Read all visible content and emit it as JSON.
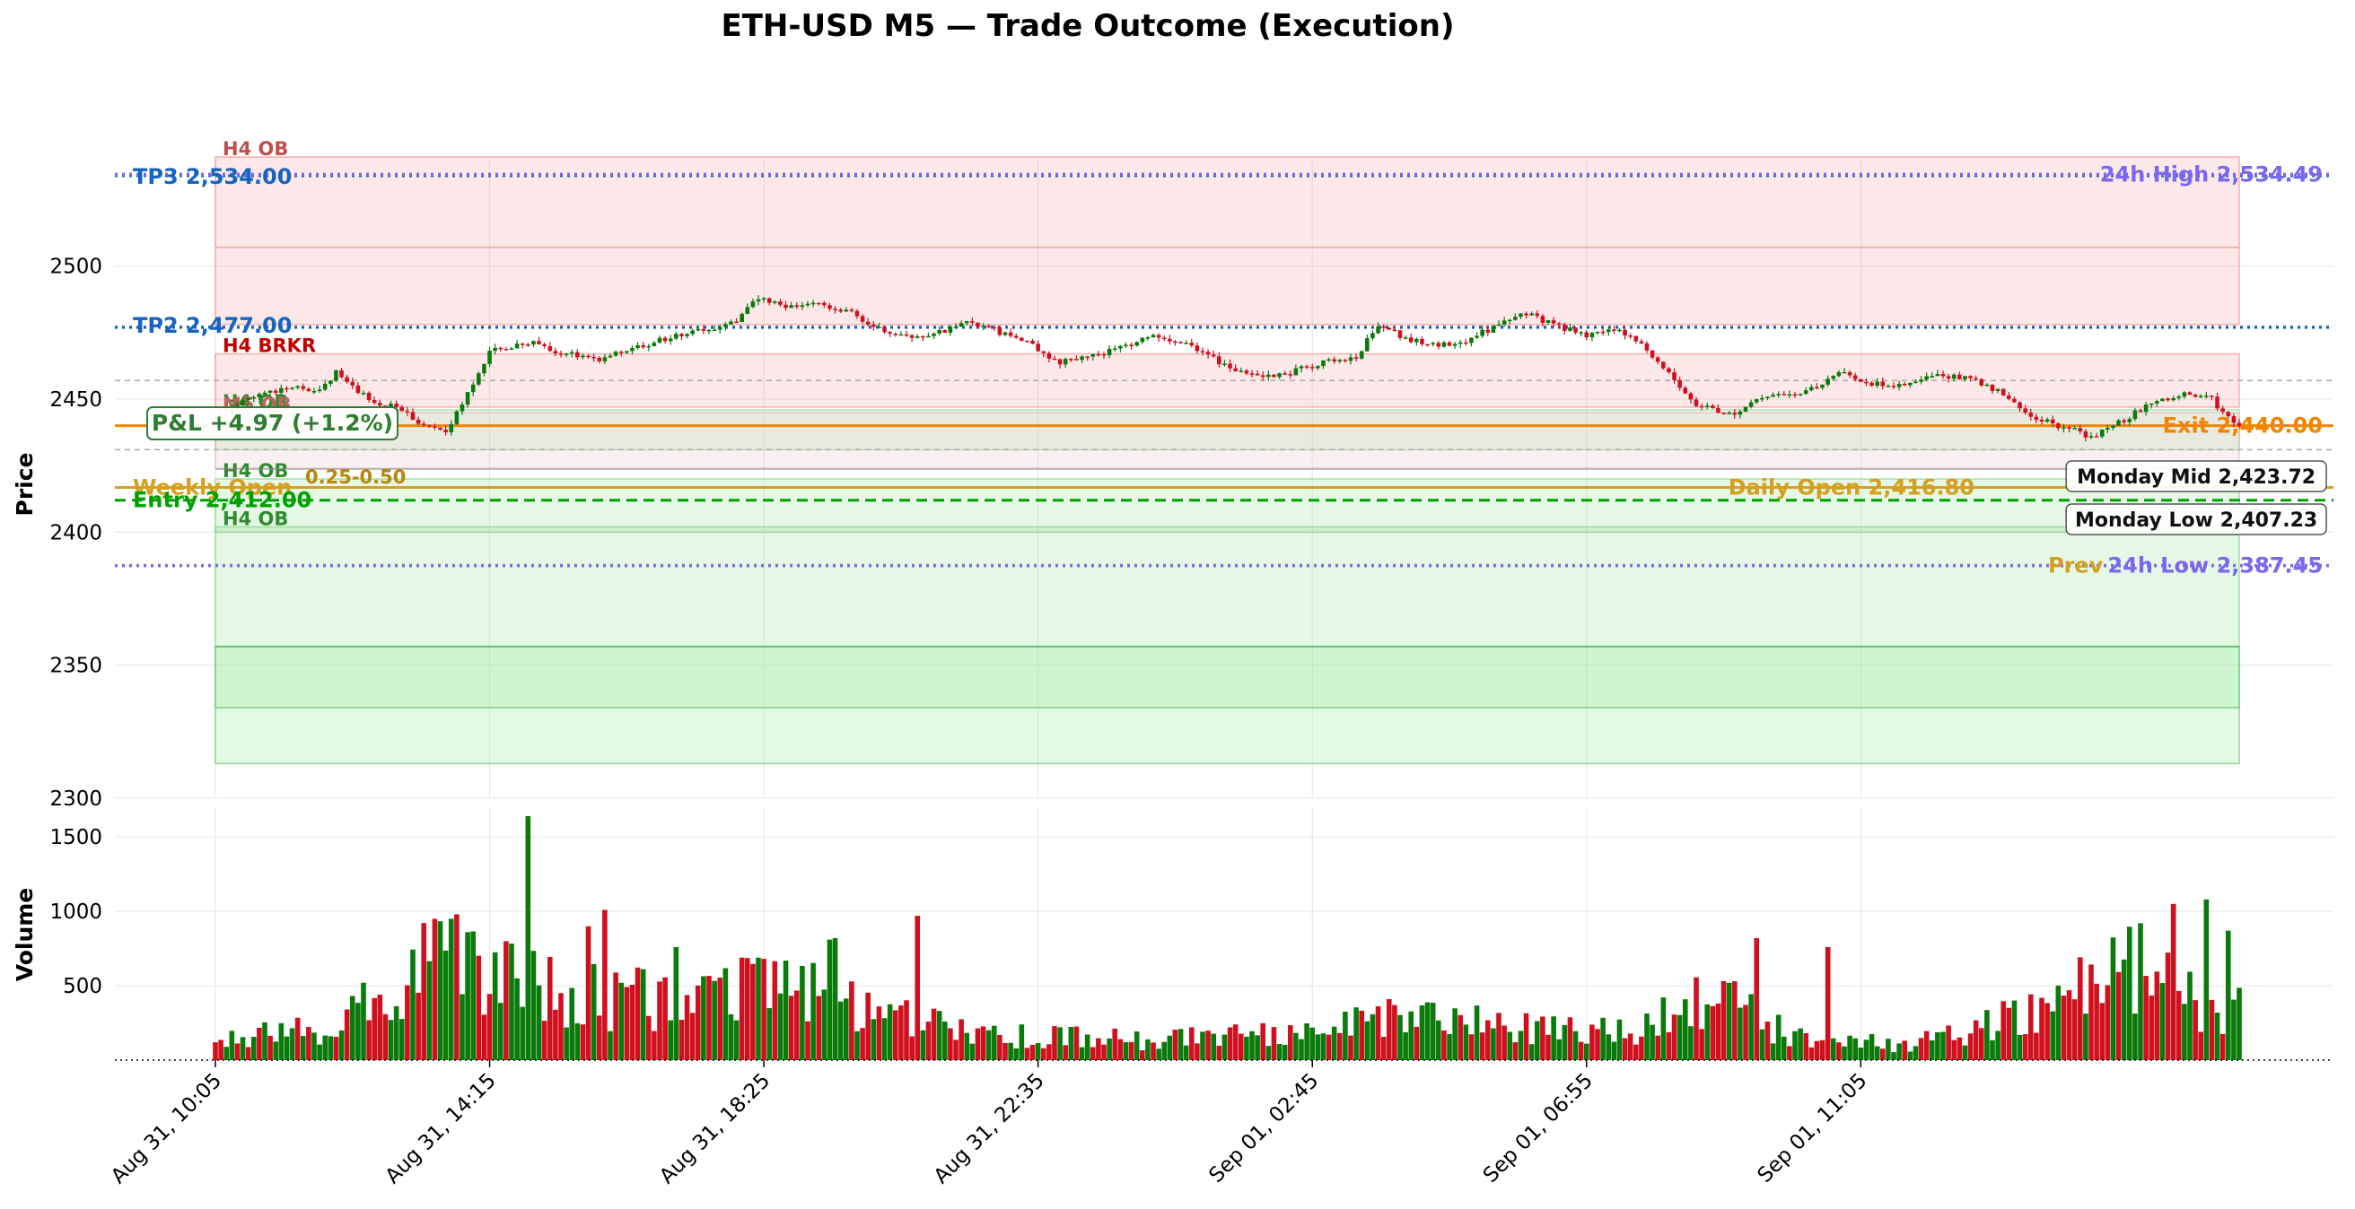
{
  "chart_data": {
    "type": "candlestick",
    "title": "ETH-USD M5 — Trade Outcome (Execution)",
    "ylabel": "Price",
    "volume_label": "Volume",
    "price_ylim": [
      2300,
      2540
    ],
    "price_yticks": [
      2300,
      2350,
      2400,
      2450,
      2500
    ],
    "volume_ylim": [
      0,
      1700
    ],
    "volume_yticks": [
      500,
      1000,
      1500
    ],
    "x_ticks": [
      "Aug 31, 10:05",
      "Aug 31, 14:15",
      "Aug 31, 18:25",
      "Aug 31, 22:35",
      "Sep 01, 02:45",
      "Sep 01, 06:55",
      "Sep 01, 11:05"
    ],
    "grid": true,
    "price_path": [
      {
        "t": 0,
        "p": 2443
      },
      {
        "t": 6,
        "p": 2450
      },
      {
        "t": 14,
        "p": 2455
      },
      {
        "t": 18,
        "p": 2452
      },
      {
        "t": 22,
        "p": 2460
      },
      {
        "t": 28,
        "p": 2450
      },
      {
        "t": 34,
        "p": 2446
      },
      {
        "t": 38,
        "p": 2440
      },
      {
        "t": 42,
        "p": 2438
      },
      {
        "t": 46,
        "p": 2452
      },
      {
        "t": 50,
        "p": 2468
      },
      {
        "t": 58,
        "p": 2472
      },
      {
        "t": 62,
        "p": 2468
      },
      {
        "t": 70,
        "p": 2465
      },
      {
        "t": 78,
        "p": 2470
      },
      {
        "t": 84,
        "p": 2474
      },
      {
        "t": 90,
        "p": 2476
      },
      {
        "t": 95,
        "p": 2480
      },
      {
        "t": 99,
        "p": 2488
      },
      {
        "t": 104,
        "p": 2484
      },
      {
        "t": 110,
        "p": 2486
      },
      {
        "t": 116,
        "p": 2482
      },
      {
        "t": 122,
        "p": 2475
      },
      {
        "t": 130,
        "p": 2473
      },
      {
        "t": 136,
        "p": 2479
      },
      {
        "t": 142,
        "p": 2476
      },
      {
        "t": 148,
        "p": 2471
      },
      {
        "t": 154,
        "p": 2464
      },
      {
        "t": 160,
        "p": 2466
      },
      {
        "t": 166,
        "p": 2470
      },
      {
        "t": 172,
        "p": 2474
      },
      {
        "t": 178,
        "p": 2470
      },
      {
        "t": 184,
        "p": 2463
      },
      {
        "t": 190,
        "p": 2458
      },
      {
        "t": 196,
        "p": 2460
      },
      {
        "t": 202,
        "p": 2464
      },
      {
        "t": 208,
        "p": 2466
      },
      {
        "t": 212,
        "p": 2478
      },
      {
        "t": 218,
        "p": 2472
      },
      {
        "t": 226,
        "p": 2470
      },
      {
        "t": 232,
        "p": 2476
      },
      {
        "t": 238,
        "p": 2483
      },
      {
        "t": 244,
        "p": 2478
      },
      {
        "t": 250,
        "p": 2474
      },
      {
        "t": 256,
        "p": 2476
      },
      {
        "t": 260,
        "p": 2470
      },
      {
        "t": 265,
        "p": 2460
      },
      {
        "t": 270,
        "p": 2448
      },
      {
        "t": 276,
        "p": 2444
      },
      {
        "t": 282,
        "p": 2450
      },
      {
        "t": 290,
        "p": 2453
      },
      {
        "t": 296,
        "p": 2460
      },
      {
        "t": 302,
        "p": 2456
      },
      {
        "t": 308,
        "p": 2455
      },
      {
        "t": 314,
        "p": 2459
      },
      {
        "t": 320,
        "p": 2458
      },
      {
        "t": 326,
        "p": 2452
      },
      {
        "t": 330,
        "p": 2444
      },
      {
        "t": 336,
        "p": 2440
      },
      {
        "t": 342,
        "p": 2436
      },
      {
        "t": 348,
        "p": 2442
      },
      {
        "t": 354,
        "p": 2450
      },
      {
        "t": 360,
        "p": 2452
      },
      {
        "t": 364,
        "p": 2450
      },
      {
        "t": 368,
        "p": 2440
      }
    ],
    "volume_profile": [
      {
        "t": 0,
        "v": 120
      },
      {
        "t": 20,
        "v": 220
      },
      {
        "t": 40,
        "v": 650
      },
      {
        "t": 55,
        "v": 520
      },
      {
        "t": 70,
        "v": 420
      },
      {
        "t": 90,
        "v": 380
      },
      {
        "t": 105,
        "v": 560
      },
      {
        "t": 120,
        "v": 300
      },
      {
        "t": 140,
        "v": 170
      },
      {
        "t": 170,
        "v": 130
      },
      {
        "t": 200,
        "v": 180
      },
      {
        "t": 215,
        "v": 300
      },
      {
        "t": 240,
        "v": 210
      },
      {
        "t": 260,
        "v": 210
      },
      {
        "t": 270,
        "v": 480
      },
      {
        "t": 290,
        "v": 120
      },
      {
        "t": 310,
        "v": 110
      },
      {
        "t": 330,
        "v": 300
      },
      {
        "t": 350,
        "v": 600
      },
      {
        "t": 368,
        "v": 320
      }
    ],
    "volume_spikes": [
      {
        "t": 43,
        "v": 950
      },
      {
        "t": 44,
        "v": 980
      },
      {
        "t": 46,
        "v": 860
      },
      {
        "t": 57,
        "v": 1640
      },
      {
        "t": 68,
        "v": 900
      },
      {
        "t": 71,
        "v": 1010
      },
      {
        "t": 84,
        "v": 760
      },
      {
        "t": 112,
        "v": 810
      },
      {
        "t": 113,
        "v": 820
      },
      {
        "t": 128,
        "v": 970
      },
      {
        "t": 281,
        "v": 820
      },
      {
        "t": 294,
        "v": 760
      },
      {
        "t": 351,
        "v": 920
      },
      {
        "t": 357,
        "v": 1050
      },
      {
        "t": 363,
        "v": 1080
      },
      {
        "t": 367,
        "v": 870
      }
    ],
    "zones": [
      {
        "label": "H4 OB",
        "low": 2478,
        "high": 2541,
        "mid": 2507,
        "color": "#f08080",
        "label_color": "#c0504d"
      },
      {
        "label": "H4 BRKR",
        "low": 2447,
        "high": 2467,
        "color": "#f08080",
        "label_color": "#c00000"
      },
      {
        "label": "H4 OB",
        "low": 2431,
        "high": 2446,
        "color": "#90d090",
        "label_color": "#2e8b2e"
      },
      {
        "label": "M5 OB",
        "low": 2424,
        "high": 2445,
        "color": "#e0b0b0",
        "label_color": "#c06060"
      },
      {
        "label": "H4 OB",
        "low": 2400,
        "high": 2420,
        "color": "#70d070",
        "label_color": "#2e8b2e"
      },
      {
        "label": "H4 OB",
        "low": 2334,
        "high": 2402,
        "color": "#70d070",
        "label_color": "#2e8b2e"
      }
    ],
    "levels": [
      {
        "label": "TP3 2,534.00",
        "value": 2534.0,
        "color": "#1565c0",
        "style": "dotted"
      },
      {
        "label": "24h High 2,534.49",
        "value": 2534.49,
        "color": "#7b68ee",
        "style": "dotted"
      },
      {
        "label": "TP2 2,477.00",
        "value": 2477.0,
        "color": "#1565c0",
        "style": "dotted"
      },
      {
        "label": "Exit 2,440.00",
        "value": 2440.0,
        "color": "#f28500",
        "style": "solid"
      },
      {
        "label": "Weekly Open",
        "value": 2416.8,
        "color": "#d4a020",
        "style": "solid"
      },
      {
        "label": "Daily Open 2,416.80",
        "value": 2416.8,
        "color": "#d4a020",
        "style": "solid"
      },
      {
        "label": "Entry 2,412.00",
        "value": 2412.0,
        "color": "#00a000",
        "style": "dashed"
      },
      {
        "label": "Prev",
        "value": 2387.45,
        "color": "#d4a020",
        "style": "dotted"
      },
      {
        "label": "24h Low 2,387.45",
        "value": 2387.45,
        "color": "#7b68ee",
        "style": "dotted"
      }
    ],
    "fib_label": "0.25-0.50",
    "annotations": {
      "pnl": "P&L +4.97 (+1.2%)",
      "monday_mid": "Monday Mid 2,423.72",
      "monday_low": "Monday Low 2,407.23"
    },
    "monday_mid_value": 2423.72,
    "monday_low_value": 2407.23,
    "colors": {
      "up": "#0a7a0a",
      "down": "#d0101e",
      "grid": "#e6e6e6"
    }
  }
}
